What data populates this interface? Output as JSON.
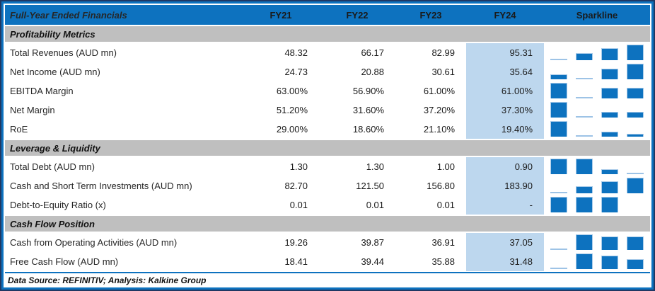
{
  "table": {
    "title": "Full-Year Ended Financials",
    "columns": [
      "FY21",
      "FY22",
      "FY23",
      "FY24"
    ],
    "sparkline_header": "Sparkline",
    "sections": [
      {
        "label": "Profitability Metrics",
        "rows": [
          {
            "label": "Total Revenues (AUD mn)",
            "values": [
              "48.32",
              "66.17",
              "82.99",
              "95.31"
            ],
            "sparkline": [
              48.32,
              66.17,
              82.99,
              95.31
            ]
          },
          {
            "label": "Net Income (AUD mn)",
            "values": [
              "24.73",
              "20.88",
              "30.61",
              "35.64"
            ],
            "sparkline": [
              24.73,
              20.88,
              30.61,
              35.64
            ]
          },
          {
            "label": "EBITDA Margin",
            "values": [
              "63.00%",
              "56.90%",
              "61.00%",
              "61.00%"
            ],
            "sparkline": [
              63.0,
              56.9,
              61.0,
              61.0
            ]
          },
          {
            "label": "Net Margin",
            "values": [
              "51.20%",
              "31.60%",
              "37.20%",
              "37.30%"
            ],
            "sparkline": [
              51.2,
              31.6,
              37.2,
              37.3
            ]
          },
          {
            "label": "RoE",
            "values": [
              "29.00%",
              "18.60%",
              "21.10%",
              "19.40%"
            ],
            "sparkline": [
              29.0,
              18.6,
              21.1,
              19.4
            ]
          }
        ]
      },
      {
        "label": "Leverage & Liquidity",
        "rows": [
          {
            "label": "Total Debt (AUD mn)",
            "values": [
              "1.30",
              "1.30",
              "1.00",
              "0.90"
            ],
            "sparkline": [
              1.3,
              1.3,
              1.0,
              0.9
            ]
          },
          {
            "label": "Cash and Short Term Investments (AUD mn)",
            "values": [
              "82.70",
              "121.50",
              "156.80",
              "183.90"
            ],
            "sparkline": [
              82.7,
              121.5,
              156.8,
              183.9
            ]
          },
          {
            "label": "Debt-to-Equity Ratio (x)",
            "values": [
              "0.01",
              "0.01",
              "0.01",
              "-"
            ],
            "sparkline": [
              0.01,
              0.01,
              0.01,
              null
            ]
          }
        ]
      },
      {
        "label": "Cash Flow Position",
        "rows": [
          {
            "label": "Cash from Operating Activities (AUD mn)",
            "values": [
              "19.26",
              "39.87",
              "36.91",
              "37.05"
            ],
            "sparkline": [
              19.26,
              39.87,
              36.91,
              37.05
            ]
          },
          {
            "label": "Free Cash Flow (AUD mn)",
            "values": [
              "18.41",
              "39.44",
              "35.88",
              "31.48"
            ],
            "sparkline": [
              18.41,
              39.44,
              35.88,
              31.48
            ]
          }
        ]
      }
    ],
    "footer": "Data Source: REFINITIV; Analysis: Kalkine Group"
  },
  "colors": {
    "header_blue": "#0d72bf",
    "outer_border": "#1f3864",
    "section_gray": "#bfbfbf",
    "fy24_highlight": "#bdd7ee",
    "sparkline_bar": "#0d72bf",
    "sparkline_min_bar": "#9dc3e6"
  }
}
